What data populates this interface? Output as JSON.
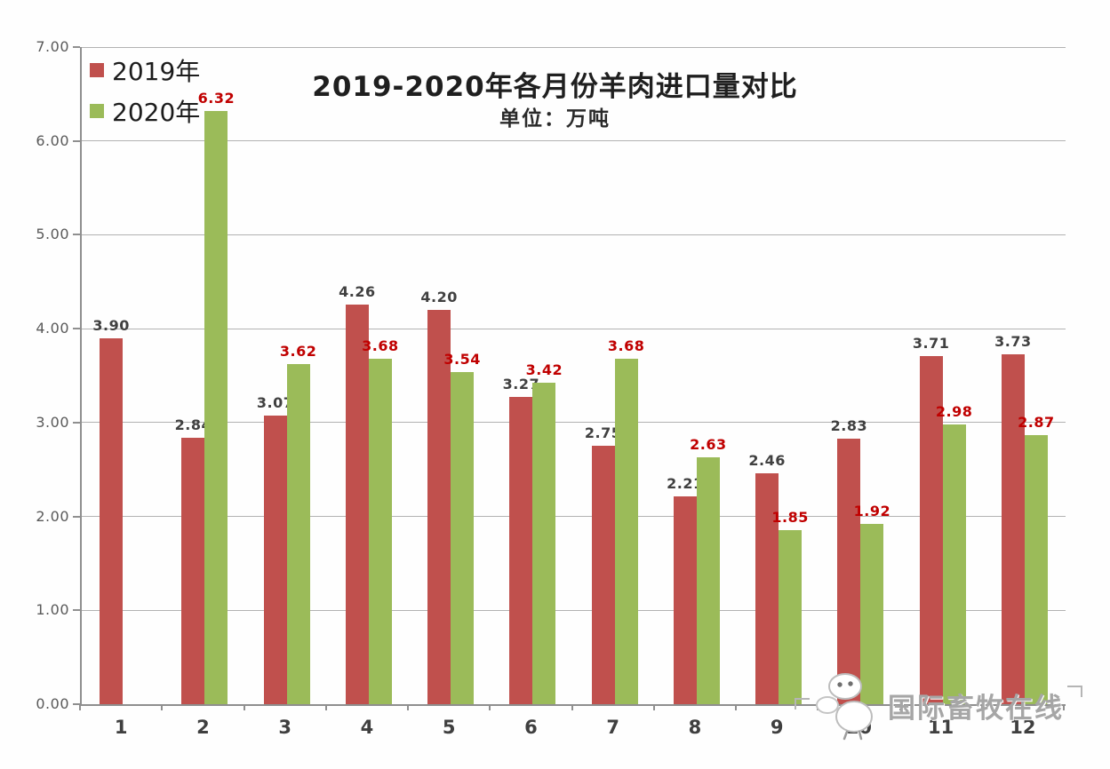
{
  "title": "2019-2020年各月份羊肉进口量对比",
  "subtitle": "单位：万吨",
  "watermark": {
    "icon": "sheep-mascot-icon",
    "text": "国际畜牧在线"
  },
  "colors": {
    "bar_2019": "#C0504D",
    "bar_2020": "#9BBB59",
    "label_2019": "#404040",
    "label_2020": "#C00000",
    "axis_text": "#595959",
    "gridline": "#B2B2B2"
  },
  "chart_data": {
    "type": "bar",
    "title": "2019-2020年各月份羊肉进口量对比",
    "subtitle": "单位：万吨",
    "xlabel": "",
    "ylabel": "",
    "categories": [
      "1",
      "2",
      "3",
      "4",
      "5",
      "6",
      "7",
      "8",
      "9",
      "10",
      "11",
      "12"
    ],
    "series": [
      {
        "name": "2019年",
        "color": "#C0504D",
        "label_color": "#404040",
        "values": [
          3.9,
          2.84,
          3.07,
          4.26,
          4.2,
          3.27,
          2.75,
          2.21,
          2.46,
          2.83,
          3.71,
          3.73
        ]
      },
      {
        "name": "2020年",
        "color": "#9BBB59",
        "label_color": "#C00000",
        "values": [
          null,
          6.32,
          3.62,
          3.68,
          3.54,
          3.42,
          3.68,
          2.63,
          1.85,
          1.92,
          2.98,
          2.87
        ]
      }
    ],
    "ylim": [
      0,
      7
    ],
    "yticks": [
      "0.00",
      "1.00",
      "2.00",
      "3.00",
      "4.00",
      "5.00",
      "6.00",
      "7.00"
    ],
    "grid": true,
    "legend_position": "top-left",
    "data_labels": "values above bars; 2019 labels black, 2020 labels red; January 2020 bar absent"
  }
}
